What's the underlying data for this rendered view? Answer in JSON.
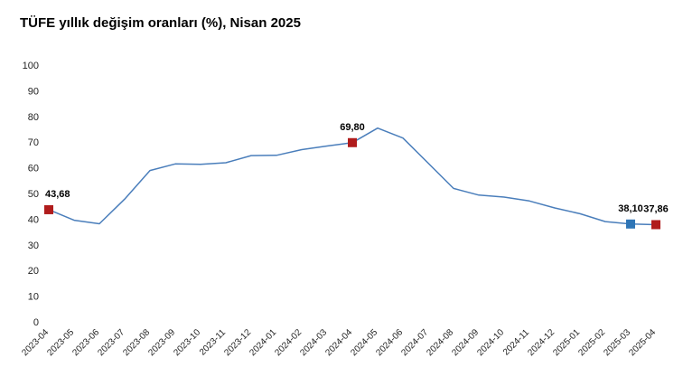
{
  "chart_data": {
    "type": "line",
    "title": "TÜFE yıllık değişim oranları (%), Nisan 2025",
    "xlabel": "",
    "ylabel": "",
    "ylim": [
      0,
      100
    ],
    "yticks": [
      "0",
      "10",
      "20",
      "30",
      "40",
      "50",
      "60",
      "70",
      "80",
      "90",
      "100"
    ],
    "grid": false,
    "legend": "none",
    "categories": [
      "2023-04",
      "2023-05",
      "2023-06",
      "2023-07",
      "2023-08",
      "2023-09",
      "2023-10",
      "2023-11",
      "2023-12",
      "2024-01",
      "2024-02",
      "2024-03",
      "2024-04",
      "2024-05",
      "2024-06",
      "2024-07",
      "2024-08",
      "2024-09",
      "2024-10",
      "2024-11",
      "2024-12",
      "2025-01",
      "2025-02",
      "2025-03",
      "2025-04"
    ],
    "values": [
      43.68,
      39.59,
      38.21,
      47.83,
      58.94,
      61.53,
      61.36,
      61.98,
      64.77,
      64.86,
      67.07,
      68.5,
      69.8,
      75.45,
      71.6,
      61.78,
      51.97,
      49.38,
      48.58,
      47.09,
      44.38,
      42.12,
      39.05,
      38.1,
      37.86
    ],
    "line_color": "#4a7ebb",
    "highlights": [
      {
        "index": 0,
        "label": "43,68",
        "color": "#b01c1c"
      },
      {
        "index": 12,
        "label": "69,80",
        "color": "#b01c1c"
      },
      {
        "index": 23,
        "label": "38,10",
        "color": "#2e75b6"
      },
      {
        "index": 24,
        "label": "37,86",
        "color": "#b01c1c"
      }
    ]
  }
}
